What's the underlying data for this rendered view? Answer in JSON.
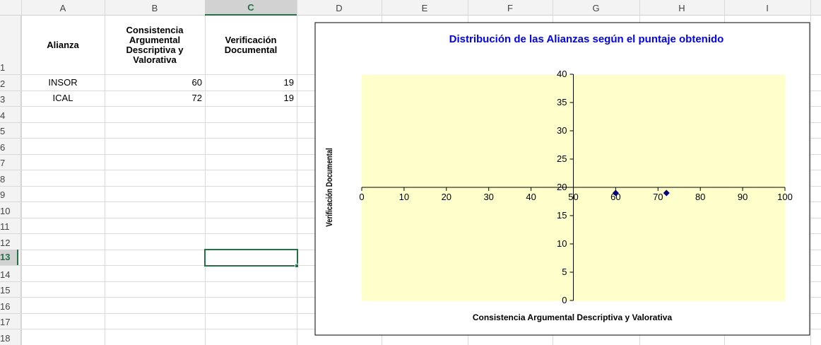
{
  "columns": [
    "A",
    "B",
    "C",
    "D",
    "E",
    "F",
    "G",
    "H",
    "I"
  ],
  "rows": [
    1,
    2,
    3,
    4,
    5,
    6,
    7,
    8,
    9,
    10,
    11,
    12,
    13,
    14,
    15,
    16,
    17,
    18
  ],
  "table": {
    "header": [
      "Alianza",
      "Consistencia Argumental Descriptiva y Valorativa",
      "Verificación Documental"
    ],
    "rows": [
      [
        "INSOR",
        60,
        19
      ],
      [
        "ICAL",
        72,
        19
      ]
    ]
  },
  "chart_data": {
    "type": "scatter",
    "title": "Distribución de las Alianzas según el puntaje obtenido",
    "x_label": "Consistencia Argumental Descriptiva y Valorativa",
    "y_label": "Verificación Documental",
    "series": [
      {
        "color": "#000080",
        "x": [
          60,
          72
        ],
        "values": [
          19,
          19
        ]
      }
    ],
    "xlim": [
      0,
      100
    ],
    "ylim": [
      0,
      40
    ],
    "xticks": [
      0,
      10,
      20,
      30,
      40,
      50,
      60,
      70,
      80,
      90,
      100
    ],
    "yticks": [
      0,
      5,
      10,
      15,
      20,
      25,
      30,
      35,
      40
    ],
    "x_axis_crosses_at": 20,
    "y_axis_crosses_at": 50,
    "plot_background": "#ffffcc"
  }
}
